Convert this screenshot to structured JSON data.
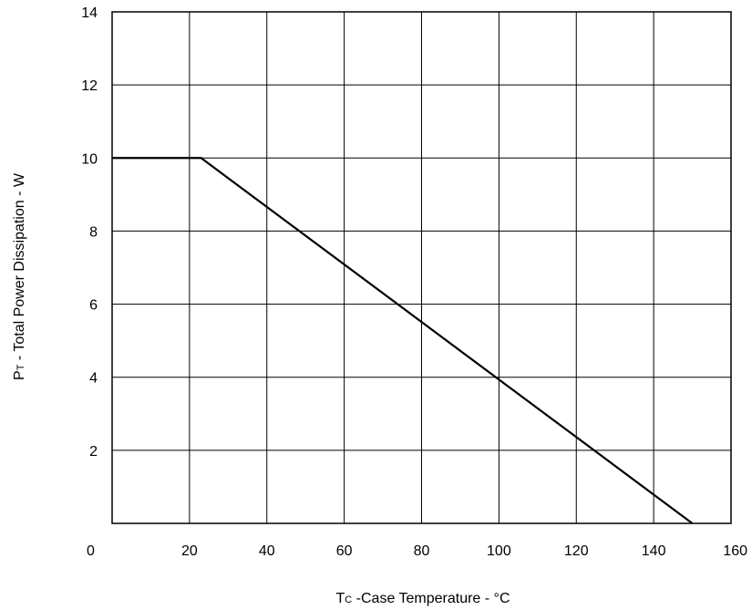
{
  "chart_data": {
    "type": "line",
    "xlabel_prefix": "T",
    "xlabel_sub": "C",
    "xlabel_rest": " -Case Temperature - °C",
    "ylabel_prefix": "P",
    "ylabel_sub": "T",
    "ylabel_rest": " - Total Power Dissipation - W",
    "xlim": [
      0,
      160
    ],
    "ylim": [
      0,
      14
    ],
    "x_ticks": [
      0,
      20,
      40,
      60,
      80,
      100,
      120,
      140,
      160
    ],
    "x_tick_labels": [
      "0",
      "20",
      "40",
      "60",
      "80",
      "100",
      "120",
      "140",
      "160"
    ],
    "y_ticks": [
      2,
      4,
      6,
      8,
      10,
      12,
      14
    ],
    "y_tick_labels": [
      "2",
      "4",
      "6",
      "8",
      "10",
      "12",
      "14"
    ],
    "grid": true,
    "series": [
      {
        "x": [
          0,
          23,
          150
        ],
        "y": [
          10,
          10,
          0
        ]
      }
    ]
  }
}
